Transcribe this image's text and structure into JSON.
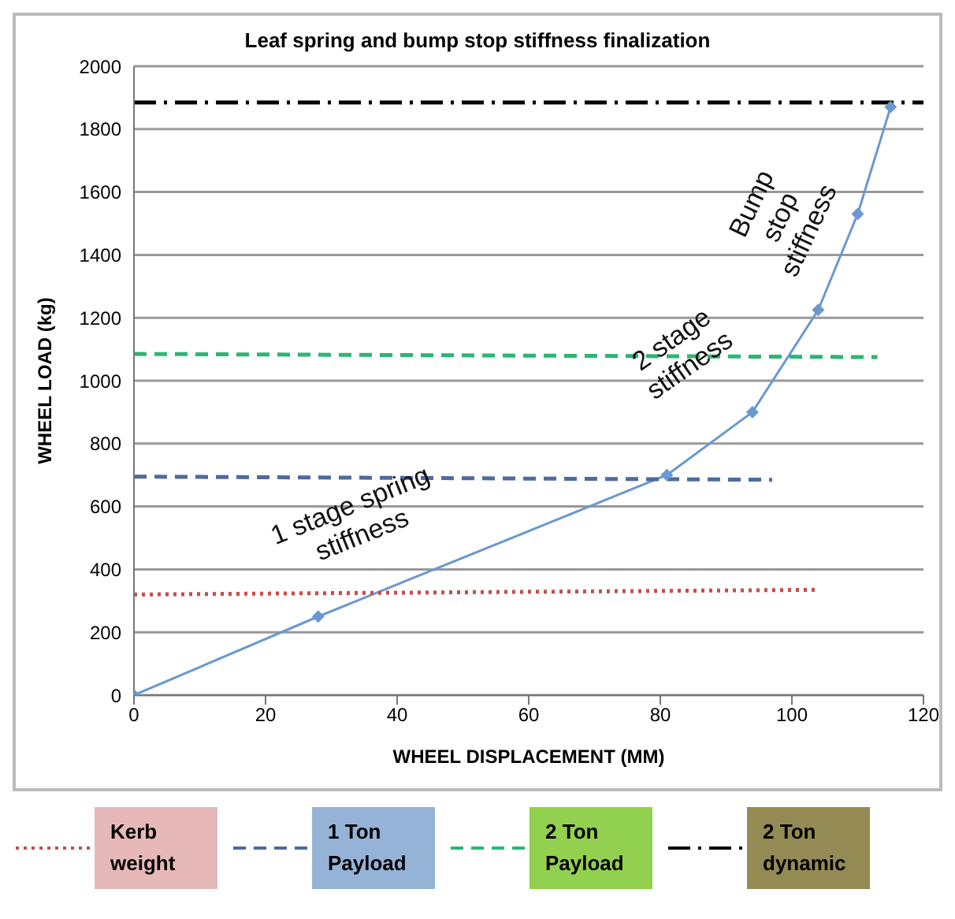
{
  "chart_data": {
    "type": "line",
    "title": "Leaf spring and bump stop stiffness finalization",
    "xlabel": "WHEEL DISPLACEMENT (MM)",
    "ylabel": "WHEEL LOAD (kg)",
    "xlim": [
      0,
      120
    ],
    "xticks": [
      0,
      20,
      40,
      60,
      80,
      100,
      120
    ],
    "ylim": [
      0,
      2000
    ],
    "yticks": [
      0,
      200,
      400,
      600,
      800,
      1000,
      1200,
      1400,
      1600,
      1800,
      2000
    ],
    "grid": "y",
    "legend": "bottom",
    "series": [
      {
        "color": "#6a98d0",
        "marker": "diamond",
        "line_style": "solid",
        "x": [
          0,
          28,
          81,
          94,
          104,
          110,
          115
        ],
        "values": [
          0,
          250,
          700,
          900,
          1225,
          1530,
          1870
        ]
      },
      {
        "name": "Kerb weight",
        "color": "#c0504d",
        "marker": "none",
        "line_style": "dotted",
        "x": [
          0,
          104
        ],
        "values": [
          320,
          335
        ]
      },
      {
        "name": "1 Ton Payload",
        "color": "#4f6aa0",
        "marker": "none",
        "line_style": "dashed",
        "x": [
          0,
          97
        ],
        "values": [
          695,
          685
        ]
      },
      {
        "name": "2 Ton Payload",
        "color": "#2bb673",
        "marker": "none",
        "line_style": "dashed",
        "x": [
          0,
          113
        ],
        "values": [
          1085,
          1075
        ]
      },
      {
        "name": "2 Ton dynamic",
        "color": "#000000",
        "marker": "none",
        "line_style": "dashdot",
        "x": [
          0,
          120
        ],
        "values": [
          1885,
          1885
        ]
      }
    ],
    "annotations": [
      "1 stage spring stiffness",
      "2 stage stiffness",
      "Bump stop stiffness"
    ]
  }
}
